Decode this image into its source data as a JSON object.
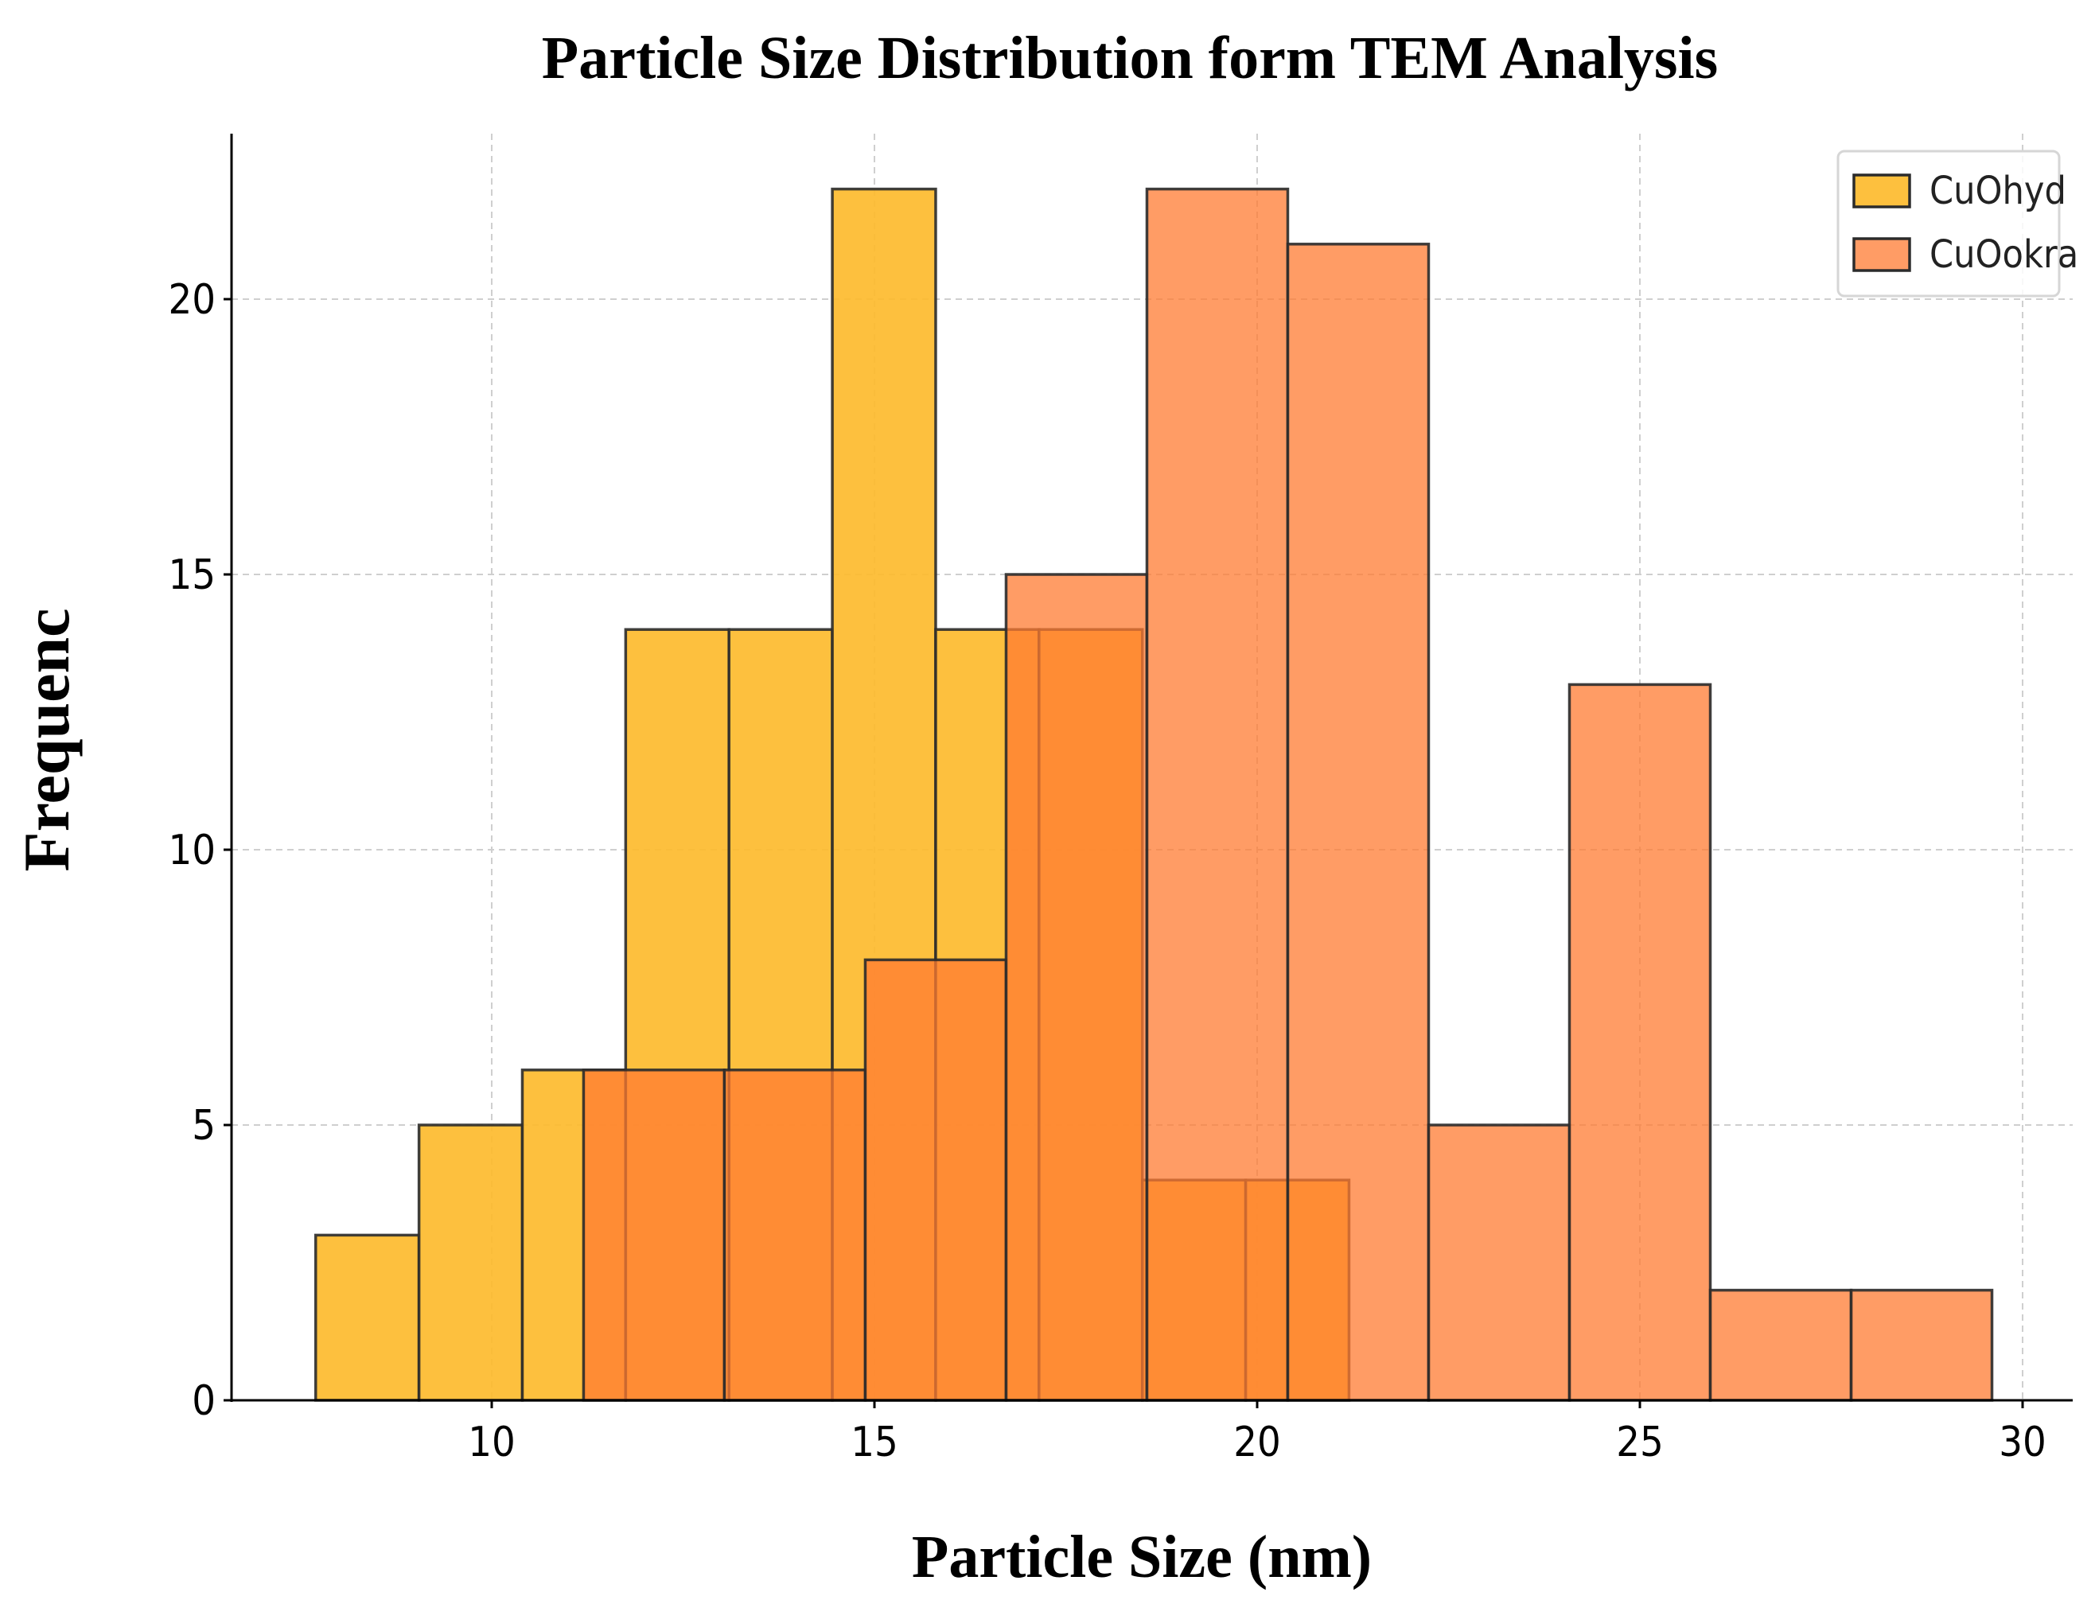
{
  "chart_data": {
    "type": "bar",
    "title": "Particle Size Distribution form TEM Analysis",
    "xlabel": "Particle Size (nm)",
    "ylabel": "Frequenc",
    "xlim": [
      6.6,
      30.7
    ],
    "ylim": [
      0,
      23
    ],
    "xticks": [
      10,
      15,
      20,
      25,
      30
    ],
    "yticks": [
      0,
      5,
      10,
      15,
      20
    ],
    "grid": true,
    "legend": "top-right",
    "series": [
      {
        "name": "CuOhyd",
        "color": "#fdbb2e",
        "opacity": 0.92,
        "bins": [
          {
            "x0": 7.7,
            "x1": 9.05,
            "count": 3
          },
          {
            "x0": 9.05,
            "x1": 10.4,
            "count": 5
          },
          {
            "x0": 10.4,
            "x1": 11.75,
            "count": 6
          },
          {
            "x0": 11.75,
            "x1": 13.1,
            "count": 14
          },
          {
            "x0": 13.1,
            "x1": 14.45,
            "count": 14
          },
          {
            "x0": 14.45,
            "x1": 15.8,
            "count": 22
          },
          {
            "x0": 15.8,
            "x1": 17.15,
            "count": 14
          },
          {
            "x0": 17.15,
            "x1": 18.5,
            "count": 14
          },
          {
            "x0": 18.5,
            "x1": 19.85,
            "count": 4
          },
          {
            "x0": 19.85,
            "x1": 21.2,
            "count": 4
          }
        ]
      },
      {
        "name": "CuOokra",
        "color": "#ff7b32",
        "opacity": 0.75,
        "bins": [
          {
            "x0": 11.2,
            "x1": 13.04,
            "count": 6
          },
          {
            "x0": 13.04,
            "x1": 14.88,
            "count": 6
          },
          {
            "x0": 14.88,
            "x1": 16.72,
            "count": 8
          },
          {
            "x0": 16.72,
            "x1": 18.56,
            "count": 15
          },
          {
            "x0": 18.56,
            "x1": 20.4,
            "count": 22
          },
          {
            "x0": 20.4,
            "x1": 22.24,
            "count": 21
          },
          {
            "x0": 22.24,
            "x1": 24.08,
            "count": 5
          },
          {
            "x0": 24.08,
            "x1": 25.92,
            "count": 13
          },
          {
            "x0": 25.92,
            "x1": 27.76,
            "count": 2
          },
          {
            "x0": 27.76,
            "x1": 29.6,
            "count": 2
          }
        ]
      }
    ]
  }
}
